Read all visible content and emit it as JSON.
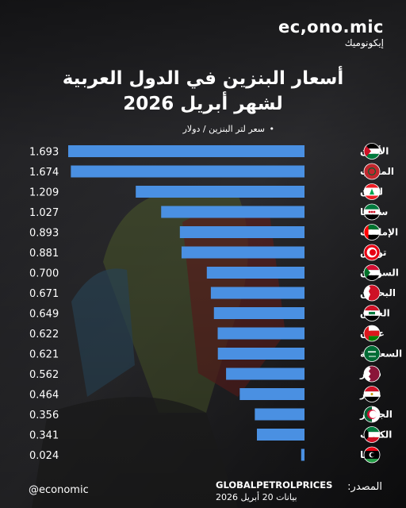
{
  "brand": {
    "name": "ec,ono.mic",
    "name_ar": "إيكونوميك"
  },
  "title_line1": "أسعار البنزين في الدول العربية",
  "title_line2": "لشهر أبريل 2026",
  "unit_label": "سعر لتر البنزين / دولار",
  "footer": {
    "handle": "@economic",
    "source_label": "المصدر:",
    "source_name": "GLOBALPETROLPRICES",
    "source_date": "بيانات 20 أبريل 2026"
  },
  "colors": {
    "bar": "#4a90e2",
    "text": "#ffffff"
  },
  "chart_data": {
    "type": "bar",
    "orientation": "horizontal",
    "title": "أسعار البنزين في الدول العربية لشهر أبريل 2026",
    "unit": "سعر لتر البنزين / دولار",
    "categories": [
      "الأردن",
      "المغرب",
      "لبنان",
      "سوريا",
      "الإمارات",
      "تونس",
      "السودان",
      "البحرين",
      "العراق",
      "عمان",
      "السعودية",
      "قطر",
      "مصر",
      "الجزائر",
      "الكويت",
      "ليبيا"
    ],
    "values": [
      1.693,
      1.674,
      1.209,
      1.027,
      0.893,
      0.881,
      0.7,
      0.671,
      0.649,
      0.622,
      0.621,
      0.562,
      0.464,
      0.356,
      0.341,
      0.024
    ],
    "value_labels": [
      "1.693",
      "1.674",
      "1.209",
      "1.027",
      "0.893",
      "0.881",
      "0.700",
      "0.671",
      "0.649",
      "0.622",
      "0.621",
      "0.562",
      "0.464",
      "0.356",
      "0.341",
      "0.024"
    ],
    "flag_icons": [
      "jordan-flag-icon",
      "morocco-flag-icon",
      "lebanon-flag-icon",
      "syria-flag-icon",
      "uae-flag-icon",
      "tunisia-flag-icon",
      "sudan-flag-icon",
      "bahrain-flag-icon",
      "iraq-flag-icon",
      "oman-flag-icon",
      "saudi-flag-icon",
      "qatar-flag-icon",
      "egypt-flag-icon",
      "algeria-flag-icon",
      "kuwait-flag-icon",
      "libya-flag-icon"
    ],
    "xlim": [
      0,
      1.75
    ],
    "grid": false,
    "legend": "none"
  }
}
